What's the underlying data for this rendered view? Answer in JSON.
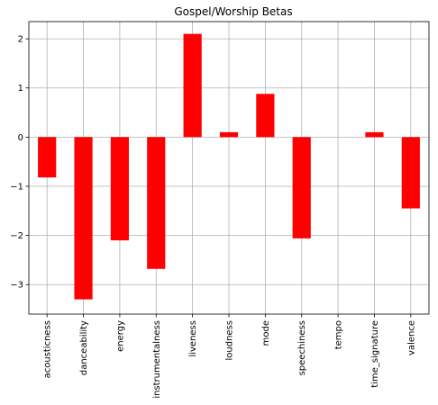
{
  "chart_data": {
    "type": "bar",
    "title": "Gospel/Worship Betas",
    "xlabel": "",
    "ylabel": "",
    "categories": [
      "acousticness",
      "danceability",
      "energy",
      "instrumentalness",
      "liveness",
      "loudness",
      "mode",
      "speechiness",
      "tempo",
      "time_signature",
      "valence"
    ],
    "values": [
      -0.82,
      -3.3,
      -2.1,
      -2.68,
      2.1,
      0.1,
      0.88,
      -2.06,
      0.0,
      0.1,
      -1.45
    ],
    "ylim": [
      -3.6,
      2.35
    ],
    "yticks": [
      -3,
      -2,
      -1,
      0,
      1,
      2
    ],
    "ytick_labels": [
      "−3",
      "−2",
      "−1",
      "0",
      "1",
      "2"
    ],
    "grid": true,
    "bar_color": "#ff0000"
  }
}
